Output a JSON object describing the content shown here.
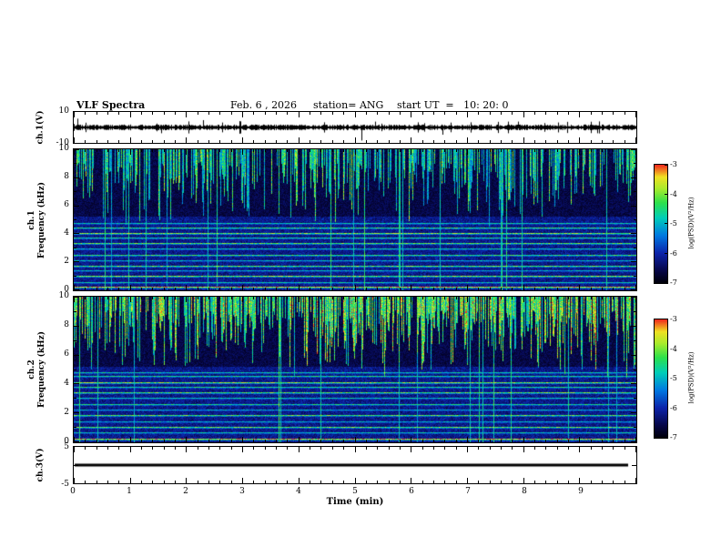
{
  "title": {
    "main": "VLF Spectra",
    "date": "Feb. 6 , 2026",
    "station": "station= ANG",
    "start_ut": "start UT  =   10: 20: 0"
  },
  "axes": {
    "time_label": "Time (min)",
    "time_ticks": [
      "0",
      "1",
      "2",
      "3",
      "4",
      "5",
      "6",
      "7",
      "8",
      "9"
    ],
    "time_range": [
      0,
      10
    ],
    "ch1v": {
      "label": "ch.1(V)",
      "top_tick": "10",
      "bottom_tick": "-10"
    },
    "spec1": {
      "channel": "ch.1",
      "axis": "Frequency (kHz)",
      "ticks": [
        "10",
        "8",
        "6",
        "4",
        "2",
        "0"
      ],
      "tick_values": [
        10,
        8,
        6,
        4,
        2,
        0
      ]
    },
    "spec2": {
      "channel": "ch.2",
      "axis": "Frequency (kHz)",
      "ticks": [
        "10",
        "8",
        "6",
        "4",
        "2",
        "0"
      ],
      "tick_values": [
        10,
        8,
        6,
        4,
        2,
        0
      ]
    },
    "ch3v": {
      "label": "ch.3(V)",
      "top_tick": "5",
      "bottom_tick": "-5"
    }
  },
  "colorbar": {
    "label": "log(PSD)(V²/Hz)",
    "ticks": [
      "-3",
      "-4",
      "-5",
      "-6",
      "-7"
    ],
    "range": [
      -7,
      -3
    ]
  },
  "chart_data": [
    {
      "type": "line",
      "name": "ch.1 voltage waveform",
      "ylabel": "ch.1(V)",
      "ylim": [
        -10,
        10
      ],
      "xlabel": "Time (min)",
      "xlim": [
        0,
        10
      ],
      "description": "broadband noise fluctuating around 0 V (~±2 V) with impulsive spikes",
      "spikes_t_v": [
        [
          0.07,
          6
        ],
        [
          1.55,
          -4
        ],
        [
          2.3,
          5
        ],
        [
          5.12,
          -9
        ],
        [
          5.35,
          4
        ],
        [
          6.55,
          -5
        ],
        [
          7.9,
          4
        ],
        [
          9.3,
          -4
        ]
      ]
    },
    {
      "type": "heatmap",
      "name": "ch.1 spectrogram",
      "xlabel": "Time (min)",
      "xlim": [
        0,
        10
      ],
      "ylabel": "Frequency (kHz)",
      "ylim": [
        0,
        10
      ],
      "colorbar_label": "log(PSD)(V²/Hz)",
      "colorbar_range": [
        -7,
        -3
      ],
      "background_level": 0.1,
      "streaks": {
        "density": 0.52,
        "min_bottom_khz": 4.3,
        "strength": 0.62,
        "full_column_prob": 0.03
      },
      "bands_khz_strength": [
        [
          0.18,
          0.9
        ],
        [
          0.55,
          0.55
        ],
        [
          0.95,
          0.75
        ],
        [
          1.35,
          0.5
        ],
        [
          1.7,
          0.7
        ],
        [
          2.1,
          0.5
        ],
        [
          2.5,
          0.65
        ],
        [
          2.9,
          0.55
        ],
        [
          3.3,
          0.7
        ],
        [
          3.7,
          0.6
        ],
        [
          4.05,
          0.75
        ],
        [
          4.4,
          0.65
        ],
        [
          4.75,
          0.55
        ]
      ],
      "description": "dense impulsive sferic streaks from 10 kHz down to ~4.5 kHz (cyan-green) over near-black background; persistent horizontal hum lines below 5 kHz"
    },
    {
      "type": "heatmap",
      "name": "ch.2 spectrogram",
      "xlabel": "Time (min)",
      "xlim": [
        0,
        10
      ],
      "ylabel": "Frequency (kHz)",
      "ylim": [
        0,
        10
      ],
      "colorbar_label": "log(PSD)(V²/Hz)",
      "colorbar_range": [
        -7,
        -3
      ],
      "background_level": 0.1,
      "streaks": {
        "density": 0.68,
        "min_bottom_khz": 4.3,
        "strength": 0.72,
        "full_column_prob": 0.03
      },
      "bands_khz_strength": [
        [
          0.18,
          0.9
        ],
        [
          0.6,
          0.55
        ],
        [
          1.0,
          0.7
        ],
        [
          1.4,
          0.5
        ],
        [
          1.8,
          0.7
        ],
        [
          2.2,
          0.5
        ],
        [
          2.6,
          0.6
        ],
        [
          3.0,
          0.55
        ],
        [
          3.4,
          0.7
        ],
        [
          3.8,
          0.6
        ],
        [
          4.1,
          0.75
        ],
        [
          4.5,
          0.6
        ],
        [
          4.8,
          0.55
        ]
      ],
      "description": "same as ch.1 but streaks brighter and denser (more green/yellow) in 5–10 kHz region"
    },
    {
      "type": "line",
      "name": "ch.3 voltage waveform",
      "ylabel": "ch.3(V)",
      "ylim": [
        -5,
        5
      ],
      "xlabel": "Time (min)",
      "xlim": [
        0,
        10
      ],
      "description": "constant 0 V flat thick line across full record"
    }
  ]
}
